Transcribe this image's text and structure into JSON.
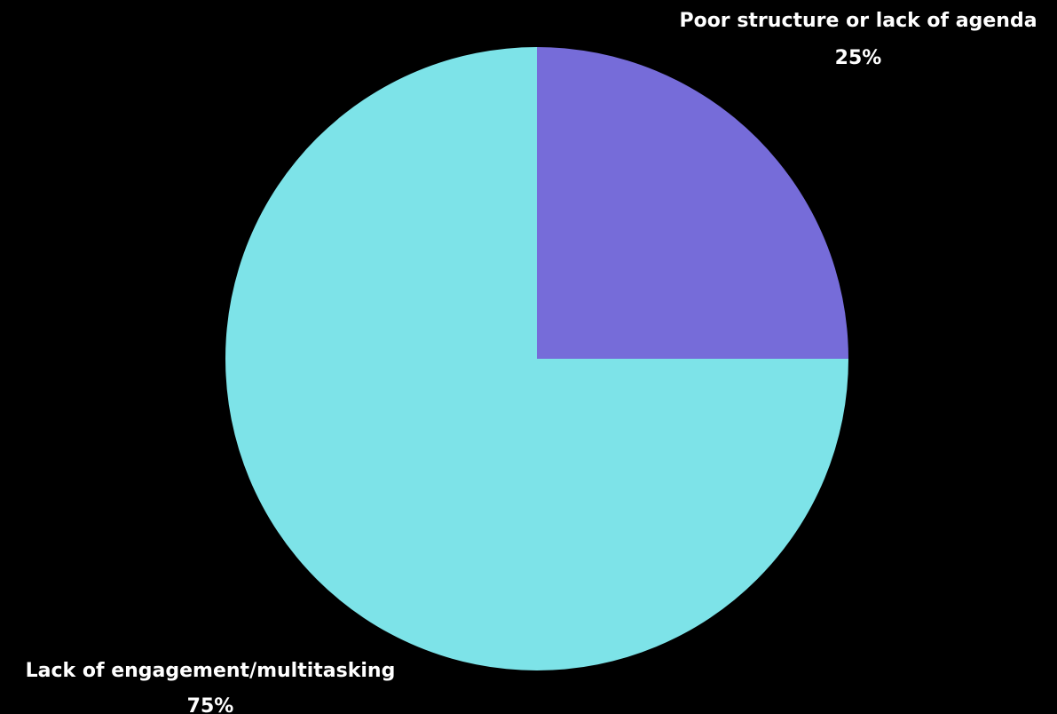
{
  "colors": {
    "background": "#000000",
    "label_text": "#ffffff"
  },
  "chart_data": {
    "type": "pie",
    "title": "",
    "start": "12 o'clock",
    "direction": "clockwise",
    "slices": [
      {
        "label": "Poor structure or lack of agenda",
        "value": 25,
        "display": "25%",
        "color": "#766cd9"
      },
      {
        "label": "Lack of engagement/multitasking",
        "value": 75,
        "display": "75%",
        "color": "#7de3e8"
      }
    ]
  }
}
